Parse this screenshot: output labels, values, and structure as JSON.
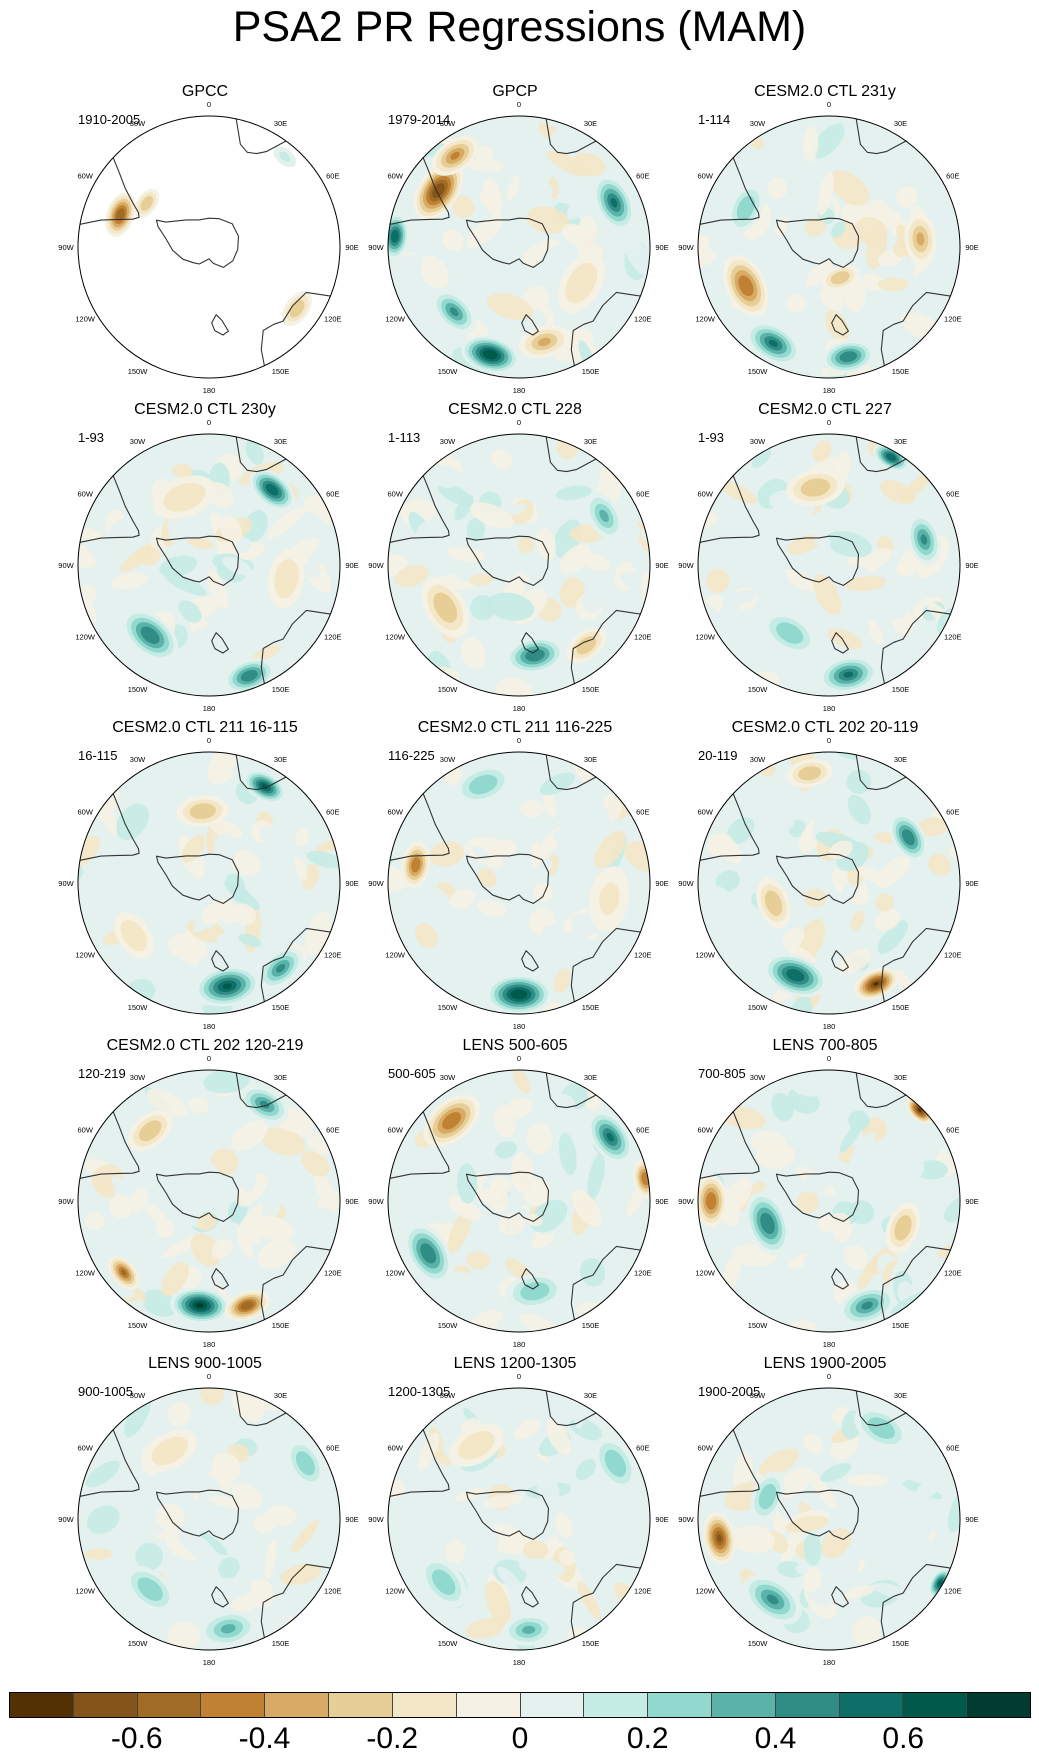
{
  "title": "PSA2 PR Regressions (MAM)",
  "map_labels": [
    "0",
    "30E",
    "60E",
    "90E",
    "120E",
    "150E",
    "180",
    "150W",
    "120W",
    "90W",
    "60W",
    "30W"
  ],
  "chart_data": {
    "type": "map-grid",
    "title": "PSA2 PR Regressions (MAM)",
    "projection": "south-polar-stereographic",
    "colorbar": {
      "labels": [
        "-0.6",
        "-0.4",
        "-0.2",
        "0",
        "0.2",
        "0.4",
        "0.6"
      ],
      "levels": [
        -0.7,
        -0.6,
        -0.5,
        -0.4,
        -0.3,
        -0.2,
        -0.1,
        0,
        0.1,
        0.2,
        0.3,
        0.4,
        0.5,
        0.6,
        0.7
      ],
      "colors": [
        "#543005",
        "#84541a",
        "#9f6b25",
        "#c08132",
        "#d7ab65",
        "#e7ce96",
        "#f4e7c7",
        "#f5f1e4",
        "#e4f1ef",
        "#c5ebe5",
        "#91d8ce",
        "#5ab2a8",
        "#2f8d86",
        "#0d6f67",
        "#005a4c",
        "#003c30"
      ]
    },
    "panels": [
      {
        "title": "GPCC",
        "period": "1910-2005",
        "blobs": [
          {
            "lon": -70,
            "r": 0.72,
            "v": -0.55,
            "s": 0.07
          },
          {
            "lon": -55,
            "r": 0.58,
            "v": -0.3,
            "s": 0.05
          },
          {
            "lon": 125,
            "r": 0.82,
            "v": -0.25,
            "s": 0.06
          },
          {
            "lon": 40,
            "r": 0.9,
            "v": 0.15,
            "s": 0.04
          }
        ]
      },
      {
        "title": "GPCP",
        "period": "1979-2014",
        "blobs": [
          {
            "lon": -55,
            "r": 0.75,
            "v": -0.65,
            "s": 0.1
          },
          {
            "lon": -35,
            "r": 0.85,
            "v": -0.4,
            "s": 0.08
          },
          {
            "lon": -165,
            "r": 0.85,
            "v": 0.65,
            "s": 0.09
          },
          {
            "lon": -135,
            "r": 0.7,
            "v": 0.4,
            "s": 0.08
          },
          {
            "lon": -85,
            "r": 0.95,
            "v": 0.55,
            "s": 0.07
          },
          {
            "lon": 65,
            "r": 0.8,
            "v": 0.5,
            "s": 0.09
          },
          {
            "lon": 165,
            "r": 0.75,
            "v": -0.35,
            "s": 0.08
          },
          {
            "lon": 120,
            "r": 0.55,
            "v": -0.2,
            "s": 0.1
          }
        ]
      },
      {
        "title": "CESM2.0 CTL 231y",
        "period": "1-114",
        "blobs": [
          {
            "lon": -115,
            "r": 0.7,
            "v": -0.45,
            "s": 0.1
          },
          {
            "lon": -150,
            "r": 0.85,
            "v": 0.5,
            "s": 0.09
          },
          {
            "lon": 170,
            "r": 0.85,
            "v": 0.45,
            "s": 0.08
          },
          {
            "lon": 85,
            "r": 0.7,
            "v": -0.35,
            "s": 0.08
          },
          {
            "lon": -65,
            "r": 0.7,
            "v": 0.3,
            "s": 0.08
          },
          {
            "lon": 160,
            "r": 0.25,
            "v": -0.3,
            "s": 0.06
          }
        ]
      },
      {
        "title": "CESM2.0 CTL 230y",
        "period": "1-93",
        "blobs": [
          {
            "lon": 40,
            "r": 0.75,
            "v": 0.55,
            "s": 0.08
          },
          {
            "lon": -140,
            "r": 0.7,
            "v": 0.45,
            "s": 0.1
          },
          {
            "lon": 160,
            "r": 0.9,
            "v": 0.45,
            "s": 0.08
          },
          {
            "lon": -20,
            "r": 0.55,
            "v": -0.2,
            "s": 0.1
          },
          {
            "lon": 100,
            "r": 0.6,
            "v": -0.2,
            "s": 0.09
          }
        ]
      },
      {
        "title": "CESM2.0 CTL 228",
        "period": "1-113",
        "blobs": [
          {
            "lon": 170,
            "r": 0.7,
            "v": 0.45,
            "s": 0.09
          },
          {
            "lon": 60,
            "r": 0.75,
            "v": 0.35,
            "s": 0.08
          },
          {
            "lon": 140,
            "r": 0.8,
            "v": -0.3,
            "s": 0.07
          },
          {
            "lon": -120,
            "r": 0.65,
            "v": -0.25,
            "s": 0.1
          }
        ]
      },
      {
        "title": "CESM2.0 CTL 227",
        "period": "1-93",
        "blobs": [
          {
            "lon": 30,
            "r": 0.95,
            "v": 0.55,
            "s": 0.06
          },
          {
            "lon": 75,
            "r": 0.75,
            "v": 0.4,
            "s": 0.08
          },
          {
            "lon": 170,
            "r": 0.85,
            "v": 0.5,
            "s": 0.09
          },
          {
            "lon": -10,
            "r": 0.6,
            "v": -0.3,
            "s": 0.09
          },
          {
            "lon": -150,
            "r": 0.6,
            "v": 0.3,
            "s": 0.09
          }
        ]
      },
      {
        "title": "CESM2.0 CTL 211 16-115",
        "period": "16-115",
        "blobs": [
          {
            "lon": 30,
            "r": 0.85,
            "v": 0.6,
            "s": 0.07
          },
          {
            "lon": 170,
            "r": 0.8,
            "v": 0.6,
            "s": 0.1
          },
          {
            "lon": 140,
            "r": 0.85,
            "v": 0.4,
            "s": 0.08
          },
          {
            "lon": -5,
            "r": 0.55,
            "v": -0.3,
            "s": 0.08
          },
          {
            "lon": -125,
            "r": 0.7,
            "v": -0.2,
            "s": 0.08
          }
        ]
      },
      {
        "title": "CESM2.0 CTL 211 116-225",
        "period": "116-225",
        "blobs": [
          {
            "lon": 180,
            "r": 0.85,
            "v": 0.65,
            "s": 0.1
          },
          {
            "lon": -80,
            "r": 0.8,
            "v": -0.45,
            "s": 0.07
          },
          {
            "lon": -20,
            "r": 0.8,
            "v": 0.3,
            "s": 0.09
          },
          {
            "lon": 100,
            "r": 0.7,
            "v": -0.15,
            "s": 0.1
          }
        ]
      },
      {
        "title": "CESM2.0 CTL 202 20-119",
        "period": "20-119",
        "blobs": [
          {
            "lon": 155,
            "r": 0.85,
            "v": -0.7,
            "s": 0.07
          },
          {
            "lon": -160,
            "r": 0.75,
            "v": 0.55,
            "s": 0.1
          },
          {
            "lon": 60,
            "r": 0.7,
            "v": 0.45,
            "s": 0.08
          },
          {
            "lon": -10,
            "r": 0.85,
            "v": -0.3,
            "s": 0.07
          },
          {
            "lon": -110,
            "r": 0.45,
            "v": -0.25,
            "s": 0.08
          }
        ]
      },
      {
        "title": "CESM2.0 CTL 202 120-219",
        "period": "120-219",
        "blobs": [
          {
            "lon": -175,
            "r": 0.8,
            "v": 0.7,
            "s": 0.09
          },
          {
            "lon": 160,
            "r": 0.85,
            "v": -0.55,
            "s": 0.07
          },
          {
            "lon": -130,
            "r": 0.85,
            "v": -0.5,
            "s": 0.06
          },
          {
            "lon": 30,
            "r": 0.85,
            "v": 0.4,
            "s": 0.08
          },
          {
            "lon": -40,
            "r": 0.7,
            "v": -0.3,
            "s": 0.08
          }
        ]
      },
      {
        "title": "LENS 500-605",
        "period": "500-605",
        "blobs": [
          {
            "lon": -40,
            "r": 0.8,
            "v": -0.45,
            "s": 0.1
          },
          {
            "lon": 55,
            "r": 0.85,
            "v": 0.5,
            "s": 0.09
          },
          {
            "lon": -120,
            "r": 0.8,
            "v": 0.45,
            "s": 0.1
          },
          {
            "lon": 80,
            "r": 0.98,
            "v": -0.45,
            "s": 0.06
          },
          {
            "lon": 170,
            "r": 0.7,
            "v": 0.3,
            "s": 0.09
          }
        ]
      },
      {
        "title": "LENS 700-805",
        "period": "700-805",
        "blobs": [
          {
            "lon": 45,
            "r": 0.98,
            "v": -0.7,
            "s": 0.05
          },
          {
            "lon": -90,
            "r": 0.9,
            "v": -0.45,
            "s": 0.08
          },
          {
            "lon": -110,
            "r": 0.5,
            "v": 0.45,
            "s": 0.1
          },
          {
            "lon": 160,
            "r": 0.85,
            "v": 0.4,
            "s": 0.09
          },
          {
            "lon": 110,
            "r": 0.6,
            "v": -0.25,
            "s": 0.08
          }
        ]
      },
      {
        "title": "LENS 900-1005",
        "period": "900-1005",
        "blobs": [
          {
            "lon": 170,
            "r": 0.85,
            "v": 0.35,
            "s": 0.09
          },
          {
            "lon": -140,
            "r": 0.7,
            "v": 0.3,
            "s": 0.09
          },
          {
            "lon": 60,
            "r": 0.85,
            "v": 0.3,
            "s": 0.08
          },
          {
            "lon": -30,
            "r": 0.6,
            "v": -0.2,
            "s": 0.09
          }
        ]
      },
      {
        "title": "LENS 1200-1305",
        "period": "1200-1305",
        "blobs": [
          {
            "lon": -130,
            "r": 0.75,
            "v": 0.3,
            "s": 0.09
          },
          {
            "lon": 175,
            "r": 0.85,
            "v": 0.35,
            "s": 0.08
          },
          {
            "lon": 60,
            "r": 0.85,
            "v": 0.25,
            "s": 0.09
          },
          {
            "lon": -30,
            "r": 0.65,
            "v": -0.2,
            "s": 0.09
          }
        ]
      },
      {
        "title": "LENS 1900-2005",
        "period": "1900-2005",
        "blobs": [
          {
            "lon": -100,
            "r": 0.85,
            "v": -0.6,
            "s": 0.08
          },
          {
            "lon": 120,
            "r": 0.98,
            "v": 0.6,
            "s": 0.05
          },
          {
            "lon": -145,
            "r": 0.75,
            "v": 0.4,
            "s": 0.1
          },
          {
            "lon": -70,
            "r": 0.5,
            "v": 0.3,
            "s": 0.08
          },
          {
            "lon": 30,
            "r": 0.8,
            "v": 0.25,
            "s": 0.09
          }
        ]
      }
    ]
  }
}
